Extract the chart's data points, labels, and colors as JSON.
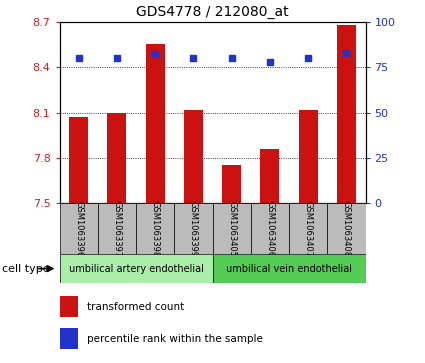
{
  "title": "GDS4778 / 212080_at",
  "samples": [
    "GSM1063396",
    "GSM1063397",
    "GSM1063398",
    "GSM1063399",
    "GSM1063405",
    "GSM1063406",
    "GSM1063407",
    "GSM1063408"
  ],
  "bar_values": [
    8.07,
    8.1,
    8.55,
    8.12,
    7.75,
    7.86,
    8.12,
    8.68
  ],
  "percentile_values": [
    80,
    80,
    82,
    80,
    80,
    78,
    80,
    83
  ],
  "ylim_left": [
    7.5,
    8.7
  ],
  "ylim_right": [
    0,
    100
  ],
  "yticks_left": [
    7.5,
    7.8,
    8.1,
    8.4,
    8.7
  ],
  "yticks_right": [
    0,
    25,
    50,
    75,
    100
  ],
  "bar_color": "#cc1111",
  "dot_color": "#2233cc",
  "cell_types": [
    {
      "label": "umbilical artery endothelial",
      "start": 0,
      "end": 4,
      "color": "#aaeeaa"
    },
    {
      "label": "umbilical vein endothelial",
      "start": 4,
      "end": 8,
      "color": "#55cc55"
    }
  ],
  "cell_type_label": "cell type",
  "legend_items": [
    {
      "label": "transformed count",
      "color": "#cc1111"
    },
    {
      "label": "percentile rank within the sample",
      "color": "#2233cc"
    }
  ],
  "background_color": "#ffffff",
  "tick_label_color_left": "#cc2222",
  "tick_label_color_right": "#2233cc",
  "bar_bottom": 7.5,
  "bar_width": 0.5,
  "dotted_yticks": [
    7.8,
    8.1,
    8.4
  ]
}
